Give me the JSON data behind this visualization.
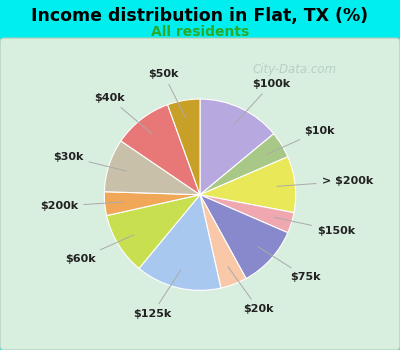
{
  "title": "Income distribution in Flat, TX (%)",
  "subtitle": "All residents",
  "title_color": "#000000",
  "subtitle_color": "#2aaa2a",
  "background_color": "#00eeee",
  "chart_bg_left": "#c8e8d0",
  "chart_bg_right": "#e8f4e8",
  "watermark": "City-Data.com",
  "labels": [
    "$100k",
    "$10k",
    "> $200k",
    "$150k",
    "$75k",
    "$20k",
    "$125k",
    "$60k",
    "$200k",
    "$30k",
    "$40k",
    "$50k"
  ],
  "sizes": [
    14.0,
    4.5,
    9.5,
    3.5,
    10.5,
    4.5,
    14.5,
    10.5,
    4.0,
    9.0,
    10.0,
    5.5
  ],
  "colors": [
    "#b8a8e0",
    "#a8c888",
    "#e8e858",
    "#f0a8b0",
    "#8888cc",
    "#f8c8a8",
    "#a8c8f0",
    "#c8e050",
    "#f0a858",
    "#c8c0a8",
    "#e87878",
    "#c8a028"
  ],
  "startangle": 90,
  "label_font_size": 8,
  "label_color": "#222222"
}
